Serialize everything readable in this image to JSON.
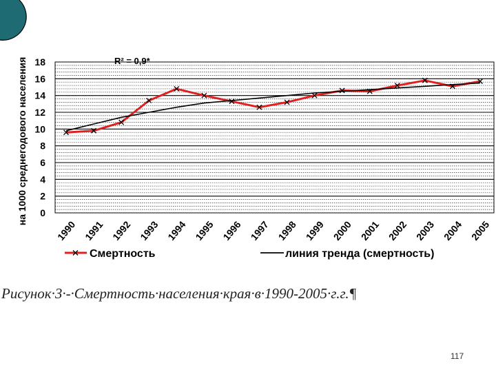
{
  "caption": "Рисунок·3·-·Смертность·населения·края·в·1990-2005·г.г.¶",
  "page_number": "117",
  "colors": {
    "series_primary": "#e02020",
    "series_trend": "#000000",
    "corner_accent": "#1e6b73"
  },
  "chart_data": {
    "type": "line",
    "ylabel": "на 1000 среднегодового населения",
    "xlabel": "",
    "title": "",
    "annotation": "R² = 0,9*",
    "ylim": [
      0,
      18
    ],
    "y_ticks": [
      0,
      2,
      4,
      6,
      8,
      10,
      12,
      14,
      16,
      18
    ],
    "categories": [
      "1990",
      "1991",
      "1992",
      "1993",
      "1994",
      "1995",
      "1996",
      "1997",
      "1998",
      "1999",
      "2000",
      "2001",
      "2002",
      "2003",
      "2004",
      "2005"
    ],
    "grid": "horizontal, solid at major ticks and dotted between",
    "legend_position": "bottom",
    "series": [
      {
        "name": "Смертность",
        "color": "#e02020",
        "marker": "x",
        "values": [
          9.6,
          9.8,
          10.8,
          13.4,
          14.8,
          14.0,
          13.3,
          12.6,
          13.2,
          14.0,
          14.6,
          14.5,
          15.2,
          15.8,
          15.1,
          15.7
        ]
      },
      {
        "name": "линия тренда (смертность)",
        "color": "#000000",
        "marker": "none",
        "values": [
          9.8,
          10.6,
          11.4,
          12.0,
          12.6,
          13.1,
          13.4,
          13.7,
          14.0,
          14.3,
          14.5,
          14.7,
          14.9,
          15.1,
          15.3,
          15.5
        ]
      }
    ]
  }
}
